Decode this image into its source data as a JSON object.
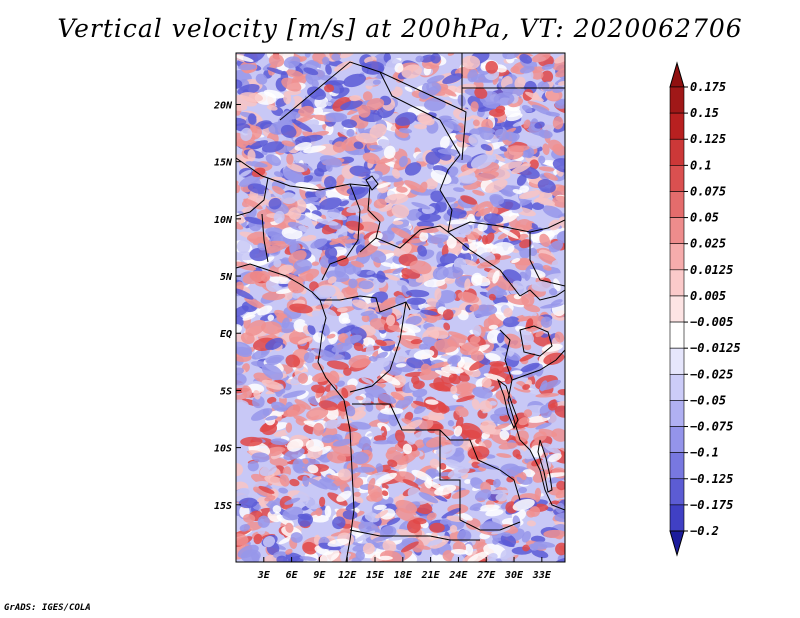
{
  "title": "Vertical velocity [m/s] at 200hPa, VT: 2020062706",
  "credit": "GrADS: IGES/COLA",
  "map": {
    "lat_range": [
      -20,
      24.5
    ],
    "lon_range": [
      0,
      35.5
    ],
    "lat_ticks": [
      {
        "value": 20,
        "label": "20N"
      },
      {
        "value": 15,
        "label": "15N"
      },
      {
        "value": 10,
        "label": "10N"
      },
      {
        "value": 5,
        "label": "5N"
      },
      {
        "value": 0,
        "label": "EQ"
      },
      {
        "value": -5,
        "label": "5S"
      },
      {
        "value": -10,
        "label": "10S"
      },
      {
        "value": -15,
        "label": "15S"
      }
    ],
    "lon_ticks": [
      {
        "value": 3,
        "label": "3E"
      },
      {
        "value": 6,
        "label": "6E"
      },
      {
        "value": 9,
        "label": "9E"
      },
      {
        "value": 12,
        "label": "12E"
      },
      {
        "value": 15,
        "label": "15E"
      },
      {
        "value": 18,
        "label": "18E"
      },
      {
        "value": 21,
        "label": "21E"
      },
      {
        "value": 24,
        "label": "24E"
      },
      {
        "value": 27,
        "label": "27E"
      },
      {
        "value": 30,
        "label": "30E"
      },
      {
        "value": 33,
        "label": "33E"
      }
    ]
  },
  "colorbar": {
    "levels": [
      {
        "label": "0.175",
        "color": "#a01818"
      },
      {
        "label": "0.15",
        "color": "#b82020"
      },
      {
        "label": "0.125",
        "color": "#cc3838"
      },
      {
        "label": "0.1",
        "color": "#da5050"
      },
      {
        "label": "0.075",
        "color": "#e46c6c"
      },
      {
        "label": "0.05",
        "color": "#ee8c8c"
      },
      {
        "label": "0.025",
        "color": "#f6acac"
      },
      {
        "label": "0.0125",
        "color": "#fbcaca"
      },
      {
        "label": "0.005",
        "color": "#fde4e4"
      },
      {
        "label": "-0.005",
        "color": "#ffffff"
      },
      {
        "label": "-0.0125",
        "color": "#e6e6fc"
      },
      {
        "label": "-0.025",
        "color": "#ccccf8"
      },
      {
        "label": "-0.05",
        "color": "#b0b0f2"
      },
      {
        "label": "-0.075",
        "color": "#9494ea"
      },
      {
        "label": "-0.1",
        "color": "#7878e0"
      },
      {
        "label": "-0.125",
        "color": "#5c5cd4"
      },
      {
        "label": "-0.175",
        "color": "#4040c4"
      },
      {
        "label": "-0.2",
        "color": "#2a2ab0"
      }
    ],
    "top_extend_color": "#901010",
    "bottom_extend_color": "#1c1c9c"
  },
  "field_colors": {
    "strong_up": "#e04848",
    "up": "#f09090",
    "weak_up": "#f8c4c4",
    "neutral": "#ffffff",
    "weak_down": "#c8c8f6",
    "down": "#9696ea",
    "strong_down": "#5a5ad6"
  }
}
